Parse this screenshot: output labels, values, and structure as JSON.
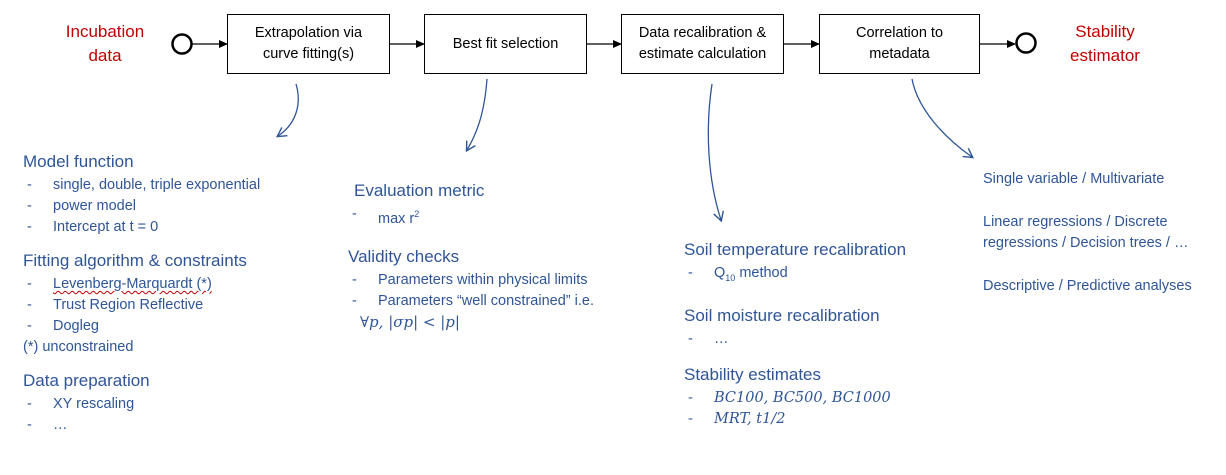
{
  "input_label": [
    "Incubation",
    "data"
  ],
  "output_label": [
    "Stability",
    "estimator"
  ],
  "steps": [
    {
      "lines": [
        "Extrapolation via",
        "curve fitting(s)"
      ]
    },
    {
      "lines": [
        "Best fit selection"
      ]
    },
    {
      "lines": [
        "Data recalibration &",
        "estimate calculation"
      ]
    },
    {
      "lines": [
        "Correlation to",
        "metadata"
      ]
    }
  ],
  "col1": {
    "model_heading": "Model function",
    "model_items": [
      "single, double, triple exponential",
      "power model",
      "Intercept at t = 0"
    ],
    "fit_heading": "Fitting algorithm & constraints",
    "fit_items": [
      "Levenberg-Marquardt (*)",
      "Trust Region Reflective",
      "Dogleg"
    ],
    "fit_note": "(*) unconstrained",
    "prep_heading": "Data preparation",
    "prep_items": [
      "XY rescaling",
      "…"
    ]
  },
  "col2": {
    "eval_heading": "Evaluation metric",
    "eval_item_text": "max r",
    "eval_item_sup": "2",
    "valid_heading": "Validity checks",
    "valid_items": [
      "Parameters within physical limits",
      "Parameters “well constrained” i.e."
    ],
    "valid_formula": "∀p,  |σp| < |p|"
  },
  "col3": {
    "temp_heading": "Soil temperature recalibration",
    "temp_item_main": "Q",
    "temp_item_sub": "10",
    "temp_item_rest": " method",
    "moist_heading": "Soil moisture recalibration",
    "moist_item": "…",
    "stab_heading": "Stability estimates",
    "stab_items": [
      "BC100, BC500, BC1000",
      "MRT, t1/2"
    ]
  },
  "col4": {
    "lines": [
      "Single variable / Multivariate",
      "Linear regressions / Discrete regressions / Decision trees / …",
      "Descriptive / Predictive analyses"
    ]
  }
}
